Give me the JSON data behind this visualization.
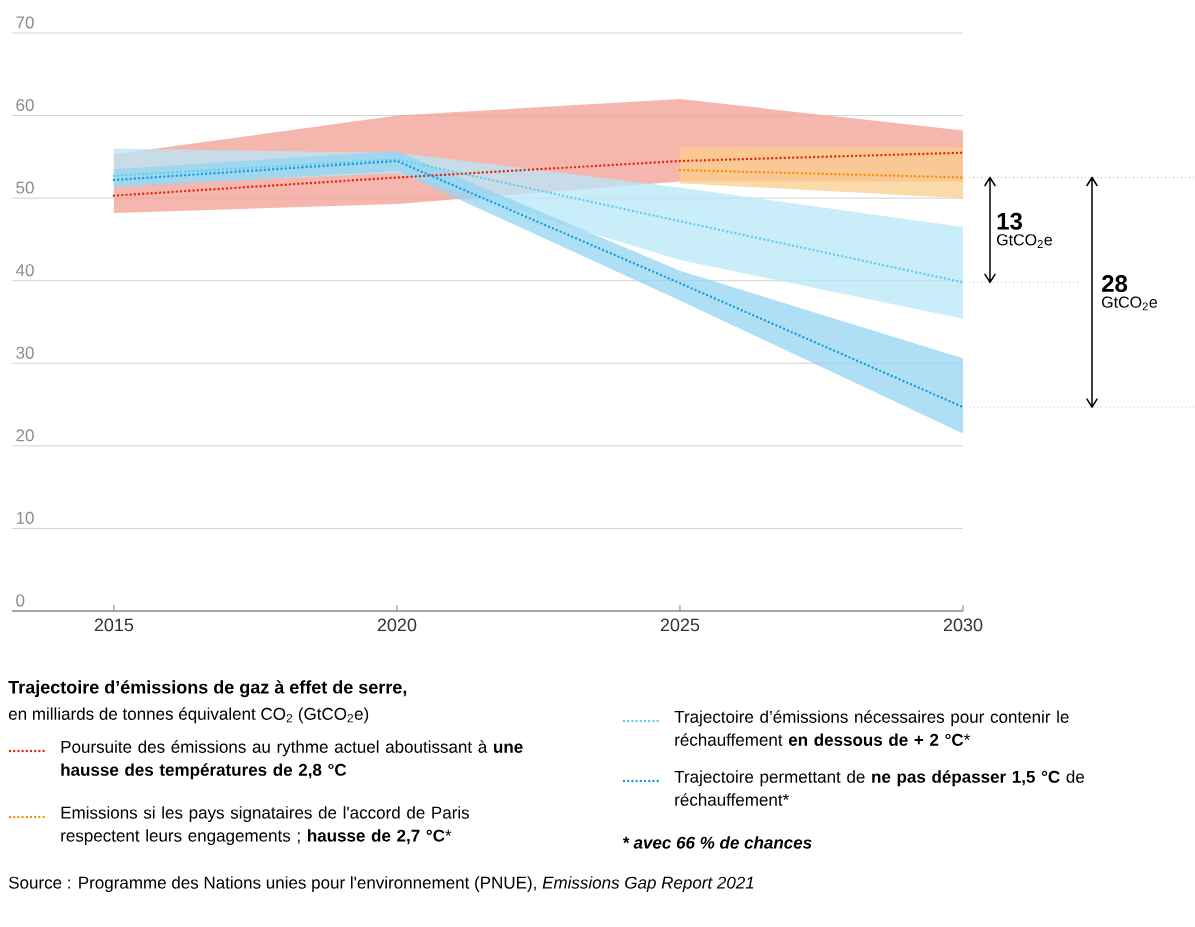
{
  "chart_data": {
    "type": "line",
    "title": "Trajectoire d’émissions de gaz à effet de serre,",
    "subtitle": "en milliards de tonnes équivalent CO$_{2}$ (GtCO$_{2}$e)",
    "xlim": [
      2013.2,
      2030
    ],
    "xticks": [
      2015,
      2020,
      2025,
      2030
    ],
    "ylim": [
      0,
      70
    ],
    "yticks": [
      0,
      10,
      20,
      30,
      40,
      50,
      60,
      70
    ],
    "grid": "y",
    "legend": "bottom",
    "marker": "none",
    "line_style": "dotted",
    "series": [
      {
        "name": "Poursuite des émissions au rythme actuel aboutissant à **une hausse des températures de 2,8 °C**",
        "color": "#e3260f",
        "x": [
          2015,
          2020,
          2025,
          2030
        ],
        "values": [
          50.3,
          52.5,
          54.5,
          55.5
        ],
        "lower": [
          48.2,
          49.3,
          52,
          52
        ],
        "upper": [
          55.3,
          60,
          62,
          58.2
        ]
      },
      {
        "name": "Emissions si les pays signataires de l'accord de Paris respectent leurs engagements ; **hausse de 2,7 °C***",
        "color": "#f39200",
        "x": [
          2025,
          2030
        ],
        "values": [
          53.4,
          52.5
        ],
        "lower": [
          51.8,
          50
        ],
        "upper": [
          56.2,
          56.2
        ]
      },
      {
        "name": "Trajectoire d’émissions nécessaires pour contenir le réchauffement **en dessous de + 2 °C***",
        "color": "#5fcdf0",
        "x": [
          2015,
          2020,
          2025,
          2030
        ],
        "values": [
          52.7,
          54.7,
          47.2,
          39.8
        ],
        "lower": [
          51.5,
          53,
          42.5,
          35.4
        ],
        "upper": [
          56,
          55.5,
          51.3,
          46.5
        ]
      },
      {
        "name": "Trajectoire permettant de **ne pas dépasser 1,5 °C** de réchauffement*",
        "color": "#119fe0",
        "x": [
          2015,
          2020,
          2025,
          2030
        ],
        "values": [
          52.2,
          54.5,
          39.7,
          24.7
        ],
        "lower": [
          51.3,
          53.3,
          37.6,
          21.5
        ],
        "upper": [
          53.5,
          55.7,
          41.2,
          30.6
        ]
      }
    ],
    "annotations": [
      "13",
      "GtCO$_{2}$e",
      "28",
      "GtCO$_{2}$e",
      "* avec 66 % de chances",
      "Source : Programme des Nations unies pour l'environnement (PNUE), *Emissions Gap Report 2021*"
    ]
  }
}
